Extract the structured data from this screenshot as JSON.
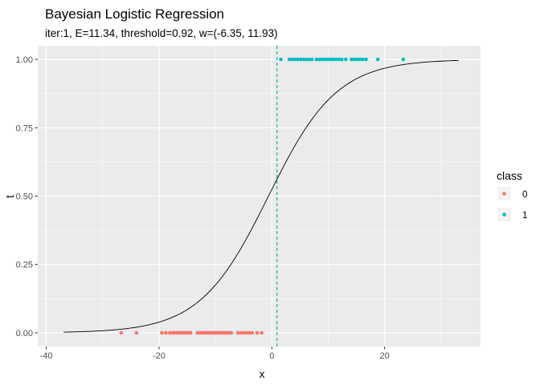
{
  "chart_data": {
    "type": "scatter",
    "title": "Bayesian Logistic Regression",
    "subtitle": "iter:1, E=11.34, threshold=0.92, w=(-6.35, 11.93)",
    "xlabel": "x",
    "ylabel": "t",
    "xlim": [
      -41.5,
      37
    ],
    "ylim": [
      -0.05,
      1.05
    ],
    "x_ticks": [
      -40,
      -20,
      0,
      20
    ],
    "x_tick_labels": [
      "-40",
      "-20",
      "0",
      "20"
    ],
    "y_ticks": [
      0,
      0.25,
      0.5,
      0.75,
      1.0
    ],
    "y_tick_labels": [
      "0.00",
      "0.25",
      "0.50",
      "0.75",
      "1.00"
    ],
    "grid": true,
    "legend": {
      "title": "class",
      "position": "right",
      "entries": [
        "0",
        "1"
      ]
    },
    "colors": {
      "class_0": "#F8766D",
      "class_1": "#00BFC4",
      "panel": "#EBEBEB",
      "grid": "#FFFFFF",
      "curve": "#000000",
      "threshold_line": "#00A08A"
    },
    "series": [
      {
        "name": "0",
        "y": 0,
        "x": [
          -26.7,
          -24.0,
          -19.5,
          -18.8,
          -18.1,
          -17.6,
          -17.2,
          -16.8,
          -16.4,
          -16.0,
          -15.6,
          -15.2,
          -14.8,
          -14.4,
          -13.2,
          -12.8,
          -12.4,
          -12.0,
          -11.6,
          -11.2,
          -10.8,
          -10.4,
          -10.0,
          -9.6,
          -9.2,
          -8.8,
          -8.4,
          -8.0,
          -7.6,
          -7.2,
          -6.0,
          -5.5,
          -5.0,
          -4.5,
          -4.0,
          -3.5,
          -2.6,
          -1.8
        ]
      },
      {
        "name": "1",
        "y": 1,
        "x": [
          1.6,
          3.1,
          3.6,
          4.1,
          4.6,
          5.1,
          5.6,
          6.1,
          6.6,
          7.1,
          7.9,
          8.4,
          8.9,
          9.4,
          9.9,
          10.4,
          10.9,
          11.4,
          11.9,
          12.4,
          13.1,
          14.1,
          14.6,
          15.1,
          15.6,
          16.1,
          16.7,
          18.8,
          23.3
        ]
      }
    ],
    "curve": {
      "label": "sigmoid",
      "x_range": [
        -36.9,
        33.1
      ],
      "midpoint_x": -0.6,
      "slope": 0.165
    },
    "threshold_x": 0.92
  }
}
